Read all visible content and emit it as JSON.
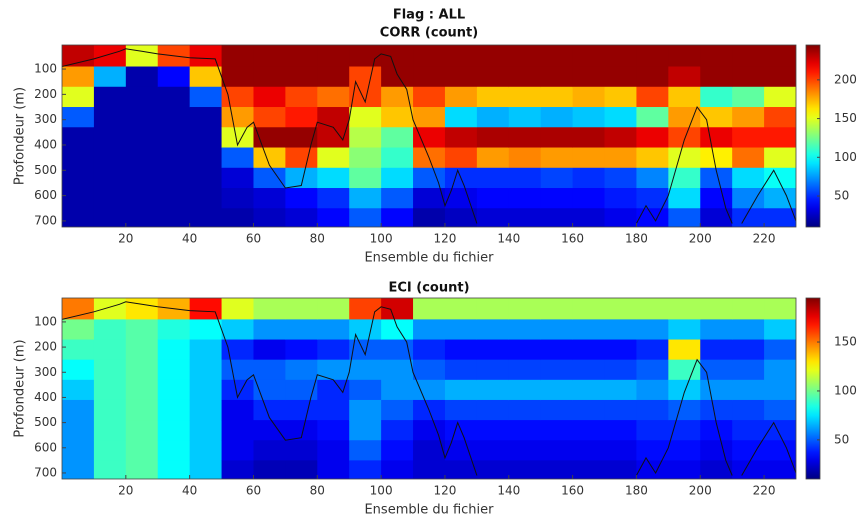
{
  "chart_data": [
    {
      "type": "heatmap",
      "suptitle": "Flag : ALL",
      "title": "CORR (count)",
      "xlabel": "Ensemble du fichier",
      "ylabel": "Profondeur (m)",
      "colormap": "jet",
      "xlim": [
        0,
        230
      ],
      "ylim": [
        5,
        724
      ],
      "y_reversed": true,
      "xticks": [
        20,
        40,
        60,
        80,
        100,
        120,
        140,
        160,
        180,
        200,
        220
      ],
      "yticks": [
        100,
        200,
        300,
        400,
        500,
        600,
        700
      ],
      "clim": [
        10,
        245
      ],
      "cticks": [
        50,
        100,
        150,
        200
      ],
      "x_bins": [
        0,
        10,
        20,
        30,
        40,
        50,
        60,
        70,
        80,
        90,
        100,
        110,
        120,
        130,
        140,
        150,
        160,
        170,
        180,
        190,
        200,
        210,
        220,
        230
      ],
      "y_bins": [
        5,
        90,
        170,
        250,
        330,
        410,
        490,
        570,
        650,
        724
      ],
      "z": [
        [
          230,
          180,
          150,
          60,
          20,
          20,
          20,
          20,
          20
        ],
        [
          220,
          80,
          20,
          20,
          20,
          20,
          20,
          20,
          20
        ],
        [
          150,
          20,
          20,
          20,
          20,
          20,
          20,
          20,
          20
        ],
        [
          200,
          40,
          20,
          20,
          20,
          20,
          20,
          20,
          20
        ],
        [
          220,
          170,
          60,
          20,
          20,
          20,
          20,
          20,
          20
        ],
        [
          240,
          240,
          200,
          180,
          150,
          60,
          30,
          25,
          20
        ],
        [
          240,
          240,
          220,
          200,
          240,
          170,
          60,
          30,
          25
        ],
        [
          240,
          240,
          200,
          210,
          240,
          200,
          80,
          40,
          30
        ],
        [
          240,
          240,
          190,
          230,
          230,
          150,
          90,
          50,
          40
        ],
        [
          240,
          200,
          200,
          150,
          140,
          130,
          120,
          80,
          60
        ],
        [
          240,
          240,
          180,
          170,
          120,
          110,
          90,
          60,
          40
        ],
        [
          240,
          240,
          200,
          180,
          220,
          190,
          60,
          30,
          20
        ],
        [
          240,
          240,
          180,
          90,
          230,
          200,
          50,
          35,
          25
        ],
        [
          240,
          240,
          170,
          80,
          235,
          180,
          50,
          40,
          30
        ],
        [
          240,
          240,
          170,
          85,
          235,
          185,
          50,
          40,
          30
        ],
        [
          240,
          240,
          170,
          80,
          235,
          180,
          55,
          40,
          30
        ],
        [
          240,
          240,
          175,
          85,
          235,
          180,
          50,
          40,
          30
        ],
        [
          240,
          240,
          170,
          90,
          230,
          180,
          55,
          45,
          35
        ],
        [
          240,
          240,
          200,
          120,
          220,
          170,
          70,
          50,
          40
        ],
        [
          240,
          230,
          170,
          180,
          200,
          150,
          110,
          90,
          60
        ],
        [
          240,
          240,
          110,
          170,
          220,
          160,
          60,
          40,
          30
        ],
        [
          240,
          240,
          120,
          180,
          210,
          190,
          90,
          70,
          50
        ],
        [
          240,
          240,
          150,
          200,
          210,
          150,
          100,
          80,
          50
        ]
      ],
      "line_color": "#111111",
      "line_x": [
        0,
        10,
        18,
        20,
        25,
        30,
        40,
        48,
        52,
        55,
        58,
        60,
        65,
        70,
        75,
        78,
        80,
        85,
        88,
        90,
        92,
        95,
        98,
        100,
        103,
        105,
        108,
        110,
        115,
        118,
        120,
        122,
        124,
        126,
        130,
        null,
        180,
        183,
        186,
        190,
        195,
        199,
        202,
        205,
        208,
        210,
        null,
        213,
        218,
        223,
        227,
        230
      ],
      "line_y": [
        90,
        60,
        30,
        20,
        30,
        40,
        55,
        60,
        200,
        400,
        330,
        310,
        480,
        570,
        560,
        400,
        310,
        330,
        380,
        300,
        150,
        230,
        60,
        40,
        50,
        120,
        180,
        300,
        450,
        550,
        640,
        580,
        500,
        560,
        710,
        null,
        710,
        640,
        700,
        600,
        380,
        250,
        300,
        500,
        650,
        710,
        null,
        710,
        600,
        500,
        600,
        700
      ]
    },
    {
      "type": "heatmap",
      "title": "ECI (count)",
      "xlabel": "Ensemble du fichier",
      "ylabel": "Profondeur (m)",
      "colormap": "jet",
      "xlim": [
        0,
        230
      ],
      "ylim": [
        5,
        724
      ],
      "y_reversed": true,
      "xticks": [
        20,
        40,
        60,
        80,
        100,
        120,
        140,
        160,
        180,
        200,
        220
      ],
      "yticks": [
        100,
        200,
        300,
        400,
        500,
        600,
        700
      ],
      "clim": [
        10,
        195
      ],
      "cticks": [
        50,
        100,
        150
      ],
      "x_bins": [
        0,
        10,
        20,
        30,
        40,
        50,
        60,
        70,
        80,
        90,
        100,
        110,
        120,
        130,
        140,
        150,
        160,
        170,
        180,
        190,
        200,
        210,
        220,
        230
      ],
      "y_bins": [
        5,
        90,
        170,
        250,
        330,
        410,
        490,
        570,
        650,
        724
      ],
      "z": [
        [
          150,
          100,
          90,
          80,
          70,
          60,
          60,
          60,
          60
        ],
        [
          120,
          90,
          90,
          90,
          90,
          90,
          90,
          90,
          90
        ],
        [
          130,
          95,
          95,
          95,
          95,
          95,
          95,
          95,
          95
        ],
        [
          140,
          85,
          80,
          80,
          80,
          80,
          80,
          80,
          80
        ],
        [
          170,
          80,
          70,
          70,
          70,
          70,
          70,
          70,
          70
        ],
        [
          120,
          70,
          40,
          50,
          40,
          30,
          30,
          30,
          25
        ],
        [
          110,
          60,
          30,
          50,
          50,
          40,
          30,
          25,
          20
        ],
        [
          110,
          60,
          35,
          55,
          50,
          40,
          30,
          25,
          20
        ],
        [
          110,
          60,
          40,
          60,
          40,
          40,
          35,
          30,
          30
        ],
        [
          160,
          70,
          50,
          60,
          50,
          60,
          60,
          50,
          40
        ],
        [
          180,
          80,
          50,
          60,
          60,
          50,
          40,
          35,
          30
        ],
        [
          110,
          60,
          40,
          50,
          60,
          40,
          30,
          25,
          25
        ],
        [
          110,
          60,
          35,
          45,
          65,
          45,
          35,
          30,
          25
        ],
        [
          110,
          60,
          35,
          45,
          65,
          45,
          35,
          30,
          25
        ],
        [
          110,
          60,
          35,
          45,
          65,
          45,
          35,
          30,
          25
        ],
        [
          110,
          60,
          35,
          45,
          65,
          45,
          35,
          30,
          25
        ],
        [
          110,
          60,
          35,
          45,
          65,
          45,
          35,
          30,
          25
        ],
        [
          110,
          60,
          35,
          45,
          65,
          45,
          35,
          30,
          25
        ],
        [
          110,
          60,
          40,
          50,
          60,
          45,
          40,
          35,
          30
        ],
        [
          110,
          70,
          130,
          90,
          70,
          50,
          40,
          35,
          30
        ],
        [
          110,
          60,
          40,
          50,
          60,
          45,
          35,
          30,
          25
        ],
        [
          110,
          60,
          40,
          50,
          60,
          45,
          40,
          35,
          30
        ],
        [
          110,
          70,
          50,
          60,
          60,
          50,
          40,
          35,
          30
        ]
      ],
      "line_color": "#111111",
      "line_x": [
        0,
        10,
        18,
        20,
        25,
        30,
        40,
        48,
        52,
        55,
        58,
        60,
        65,
        70,
        75,
        78,
        80,
        85,
        88,
        90,
        92,
        95,
        98,
        100,
        103,
        105,
        108,
        110,
        115,
        118,
        120,
        122,
        124,
        126,
        130,
        null,
        180,
        183,
        186,
        190,
        195,
        199,
        202,
        205,
        208,
        210,
        null,
        213,
        218,
        223,
        227,
        230
      ],
      "line_y": [
        90,
        60,
        30,
        20,
        30,
        40,
        55,
        60,
        200,
        400,
        330,
        310,
        480,
        570,
        560,
        400,
        310,
        330,
        380,
        300,
        150,
        230,
        60,
        40,
        50,
        120,
        180,
        300,
        450,
        550,
        640,
        580,
        500,
        560,
        710,
        null,
        710,
        640,
        700,
        600,
        380,
        250,
        300,
        500,
        650,
        710,
        null,
        710,
        600,
        500,
        600,
        700
      ]
    }
  ]
}
